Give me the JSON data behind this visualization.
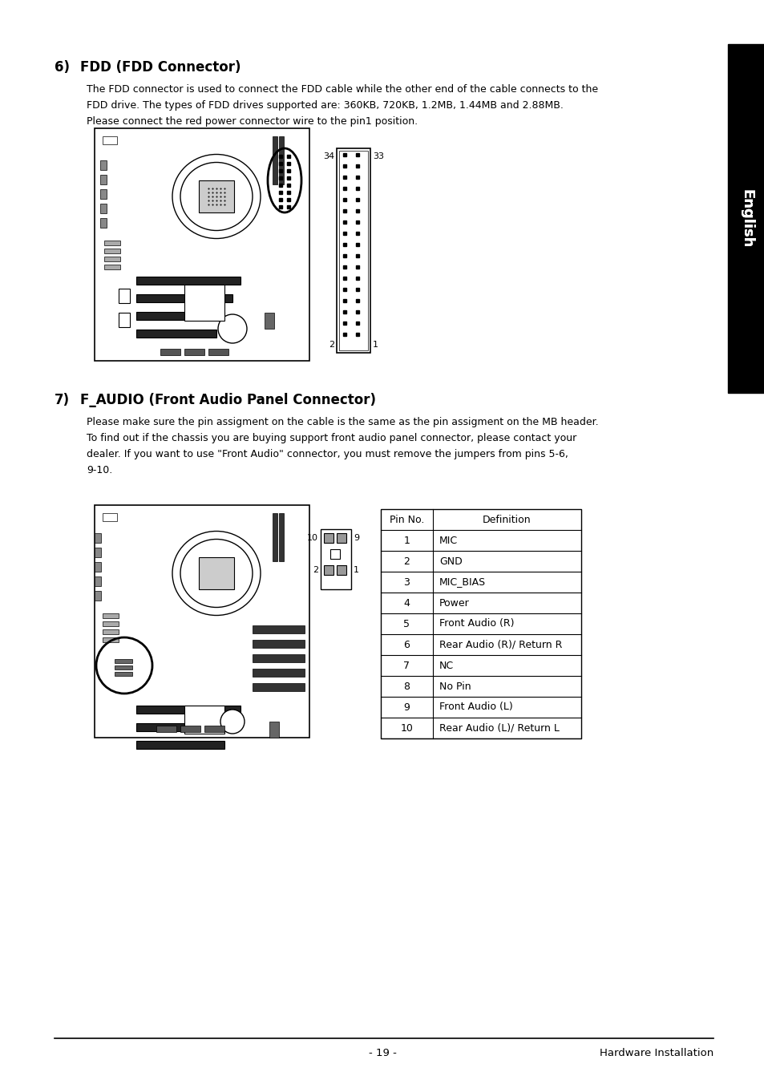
{
  "page_bg": "#ffffff",
  "section6_number": "6)",
  "section6_title": "FDD (FDD Connector)",
  "section6_body_line1": "The FDD connector is used to connect the FDD cable while the other end of the cable connects to the",
  "section6_body_line2": "FDD drive. The types of FDD drives supported are: 360KB, 720KB, 1.2MB, 1.44MB and 2.88MB.",
  "section6_body_line3": "Please connect the red power connector wire to the pin1 position.",
  "section7_number": "7)",
  "section7_title": "F_AUDIO (Front Audio Panel Connector)",
  "section7_body_line1": "Please make sure the pin assigment on the cable is the same as the pin assigment on the MB header.",
  "section7_body_line2": "To find out if the chassis you are buying support front audio panel connector, please contact your",
  "section7_body_line3": "dealer. If you want to use \"Front Audio\" connector, you must remove the jumpers from pins 5-6,",
  "section7_body_line4": "9-10.",
  "table_headers": [
    "Pin No.",
    "Definition"
  ],
  "table_rows": [
    [
      "1",
      "MIC"
    ],
    [
      "2",
      "GND"
    ],
    [
      "3",
      "MIC_BIAS"
    ],
    [
      "4",
      "Power"
    ],
    [
      "5",
      "Front Audio (R)"
    ],
    [
      "6",
      "Rear Audio (R)/ Return R"
    ],
    [
      "7",
      "NC"
    ],
    [
      "8",
      "No Pin"
    ],
    [
      "9",
      "Front Audio (L)"
    ],
    [
      "10",
      "Rear Audio (L)/ Return L"
    ]
  ],
  "fdd_label_34": "34",
  "fdd_label_33": "33",
  "fdd_label_2": "2",
  "fdd_label_1": "1",
  "audio_label_10": "10",
  "audio_label_9": "9",
  "audio_label_2": "2",
  "audio_label_1": "1",
  "footer_page": "- 19 -",
  "footer_right": "Hardware Installation"
}
